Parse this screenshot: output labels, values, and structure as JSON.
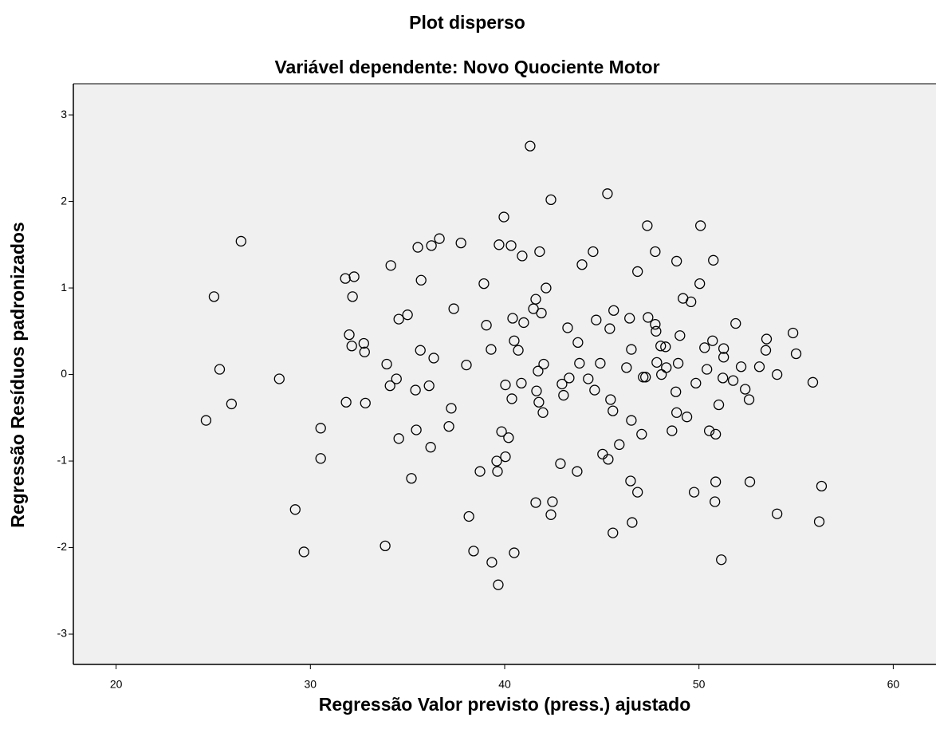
{
  "chart_data": {
    "type": "scatter",
    "title": "Plot disperso",
    "subtitle": "Variável dependente: Novo Quociente Motor",
    "x_label": "Regressão Valor previsto (press.) ajustado",
    "y_label": "Regressão Resíduos padronizados",
    "xlim": [
      17.8,
      62.2
    ],
    "ylim": [
      -3.35,
      3.36
    ],
    "xticks": [
      20,
      30,
      40,
      50,
      60
    ],
    "yticks": [
      3,
      2,
      1,
      0,
      -1,
      -2,
      -3
    ],
    "background": "#f0f0f0",
    "series": [
      {
        "color": "#000000",
        "x": [
          24.63,
          25.04,
          25.33,
          25.94,
          26.43,
          28.4,
          29.22,
          29.67,
          30.53,
          30.53,
          31.8,
          32.25,
          32.17,
          31.84,
          32.0,
          32.13,
          32.75,
          32.79,
          32.83,
          33.93,
          34.1,
          34.14,
          34.43,
          34.55,
          34.55,
          35.0,
          33.85,
          35.2,
          35.41,
          35.45,
          35.53,
          35.66,
          35.7,
          36.11,
          36.19,
          36.23,
          36.35,
          36.64,
          37.13,
          37.25,
          37.38,
          37.75,
          38.03,
          38.16,
          38.4,
          38.73,
          38.93,
          39.06,
          39.34,
          39.3,
          39.59,
          39.63,
          39.67,
          39.71,
          39.84,
          39.96,
          40.04,
          40.04,
          40.2,
          40.33,
          40.37,
          40.41,
          40.49,
          40.49,
          40.7,
          40.86,
          40.9,
          40.98,
          41.31,
          41.48,
          41.6,
          41.6,
          41.64,
          41.72,
          41.76,
          41.8,
          41.89,
          41.97,
          42.01,
          42.13,
          42.38,
          42.46,
          42.87,
          42.95,
          43.03,
          43.24,
          43.32,
          42.38,
          43.73,
          43.77,
          43.85,
          43.98,
          44.3,
          44.55,
          44.63,
          44.71,
          44.92,
          45.04,
          45.29,
          45.33,
          45.41,
          45.45,
          45.57,
          45.57,
          45.61,
          45.9,
          46.27,
          46.43,
          46.48,
          46.52,
          46.52,
          46.56,
          46.84,
          46.84,
          47.05,
          47.13,
          47.25,
          47.34,
          47.38,
          47.75,
          47.75,
          47.79,
          47.83,
          48.03,
          48.07,
          48.28,
          48.32,
          48.61,
          48.81,
          48.85,
          48.85,
          48.93,
          49.02,
          49.18,
          49.38,
          49.59,
          49.75,
          49.84,
          50.04,
          50.08,
          50.29,
          50.41,
          50.53,
          50.7,
          50.74,
          50.82,
          50.86,
          50.86,
          51.02,
          51.15,
          51.23,
          51.27,
          51.27,
          51.76,
          51.89,
          52.17,
          52.38,
          52.58,
          52.62,
          53.11,
          53.44,
          53.48,
          54.02,
          54.02,
          54.84,
          55.0,
          55.86,
          56.19,
          56.31
        ],
        "values": [
          -0.53,
          0.9,
          0.06,
          -0.34,
          1.54,
          -0.05,
          -1.56,
          -2.05,
          -0.62,
          -0.97,
          1.11,
          1.13,
          0.9,
          -0.32,
          0.46,
          0.33,
          0.36,
          0.26,
          -0.33,
          0.12,
          -0.13,
          1.26,
          -0.05,
          -0.74,
          0.64,
          0.69,
          -1.98,
          -1.2,
          -0.18,
          -0.64,
          1.47,
          0.28,
          1.09,
          -0.13,
          -0.84,
          1.49,
          0.19,
          1.57,
          -0.6,
          -0.39,
          0.76,
          1.52,
          0.11,
          -1.64,
          -2.04,
          -1.12,
          1.05,
          0.57,
          -2.17,
          0.29,
          -1.0,
          -1.12,
          -2.43,
          1.5,
          -0.66,
          1.82,
          -0.95,
          -0.12,
          -0.73,
          1.49,
          -0.28,
          0.65,
          -2.06,
          0.39,
          0.28,
          -0.1,
          1.37,
          0.6,
          2.64,
          0.76,
          0.87,
          -1.48,
          -0.19,
          0.04,
          -0.32,
          1.42,
          0.71,
          -0.44,
          0.12,
          1.0,
          -1.62,
          -1.47,
          -1.03,
          -0.11,
          -0.24,
          0.54,
          -0.04,
          2.02,
          -1.12,
          0.37,
          0.13,
          1.27,
          -0.05,
          1.42,
          -0.18,
          0.63,
          0.13,
          -0.92,
          2.09,
          -0.98,
          0.53,
          -0.29,
          -0.42,
          -1.83,
          0.74,
          -0.81,
          0.08,
          0.65,
          -1.23,
          0.29,
          -0.53,
          -1.71,
          -1.36,
          1.19,
          -0.69,
          -0.03,
          -0.03,
          1.72,
          0.66,
          0.58,
          1.42,
          0.5,
          0.14,
          0.33,
          0.0,
          0.32,
          0.08,
          -0.65,
          -0.2,
          1.31,
          -0.44,
          0.13,
          0.45,
          0.88,
          -0.49,
          0.84,
          -1.36,
          -0.1,
          1.05,
          1.72,
          0.31,
          0.06,
          -0.65,
          0.39,
          1.32,
          -1.47,
          -1.24,
          -0.69,
          -0.35,
          -2.14,
          -0.04,
          0.3,
          0.2,
          -0.07,
          0.59,
          0.09,
          -0.17,
          -0.29,
          -1.24,
          0.09,
          0.28,
          0.41,
          0.0,
          -1.61,
          0.48,
          0.24,
          -0.09,
          -1.7,
          -1.29
        ]
      }
    ]
  }
}
